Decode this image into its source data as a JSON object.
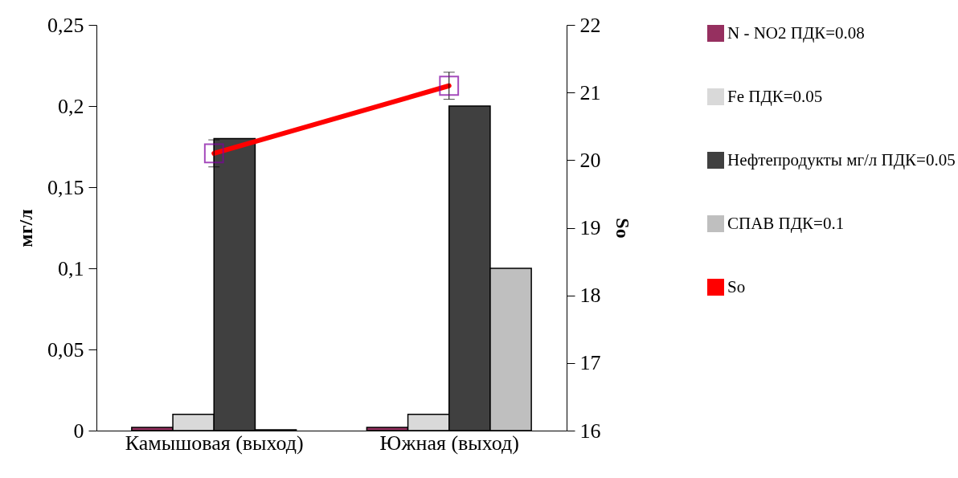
{
  "chart_data": {
    "type": "bar",
    "xlabel": null,
    "ylabel": "мг/л",
    "y2label": "So",
    "categories": [
      "Камышовая  (выход)",
      "Южная  (выход)"
    ],
    "series": [
      {
        "name": "N - NO2 ПДК=0.08",
        "color": "#963060",
        "values": [
          0.002,
          0.002
        ]
      },
      {
        "name": "Fe ПДК=0.05",
        "color": "#d9d9d9",
        "values": [
          0.01,
          0.01
        ]
      },
      {
        "name": "Нефтепродукты мг/л ПДК=0.05",
        "color": "#404040",
        "values": [
          0.18,
          0.2
        ]
      },
      {
        "name": "СПАВ ПДК=0.1",
        "color": "#bfbfbf",
        "values": [
          0.0005,
          0.1
        ]
      },
      {
        "name": "So",
        "type": "line",
        "axis": "y2",
        "color": "#ff0000",
        "values": [
          20.1,
          21.1
        ],
        "errors": [
          0.2,
          0.2
        ]
      }
    ],
    "ylim": [
      0,
      0.25
    ],
    "yticks": [
      0,
      {
        "value": 0.05,
        "label": "0,05"
      },
      {
        "value": 0.1,
        "label": "0,1"
      },
      {
        "value": 0.15,
        "label": "0,15"
      },
      {
        "value": 0.2,
        "label": "0,2"
      },
      {
        "value": 0.25,
        "label": "0,25"
      }
    ],
    "y2lim": [
      16,
      22
    ],
    "y2ticks": [
      16,
      17,
      18,
      19,
      20,
      21,
      22
    ],
    "legend": "right",
    "marker": "square",
    "grid": false
  }
}
